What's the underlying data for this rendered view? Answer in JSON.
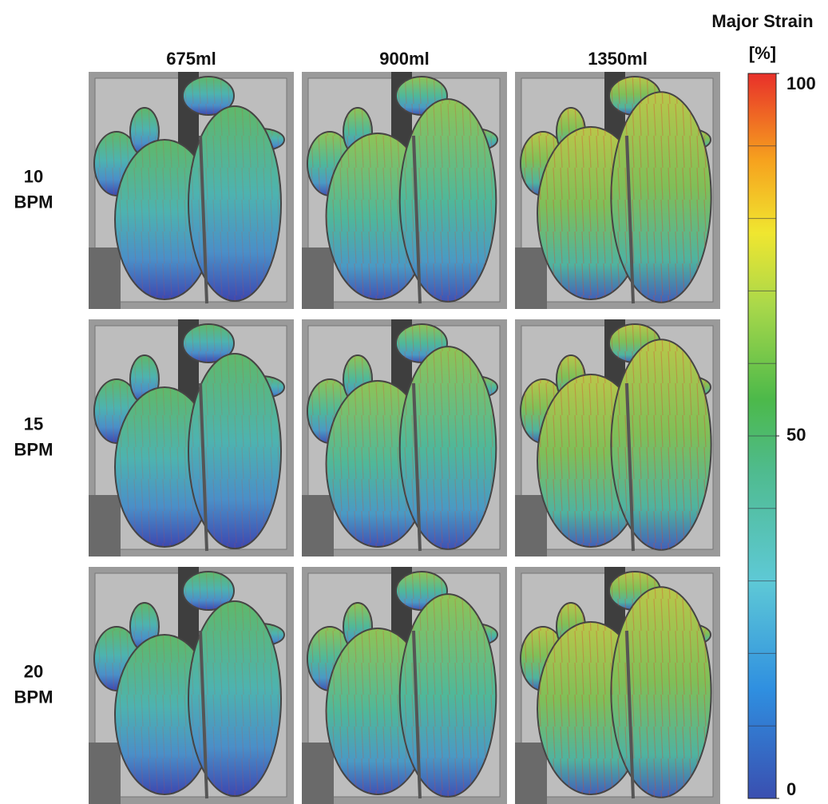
{
  "figure": {
    "columns": [
      "675ml",
      "900ml",
      "1350ml"
    ],
    "rows": [
      [
        "10",
        "BPM"
      ],
      [
        "15",
        "BPM"
      ],
      [
        "20",
        "BPM"
      ]
    ],
    "colorbar": {
      "title": "Major Strain",
      "unit": "[%]",
      "range": [
        0,
        100
      ],
      "ticks": [
        0,
        50,
        100
      ]
    }
  }
}
